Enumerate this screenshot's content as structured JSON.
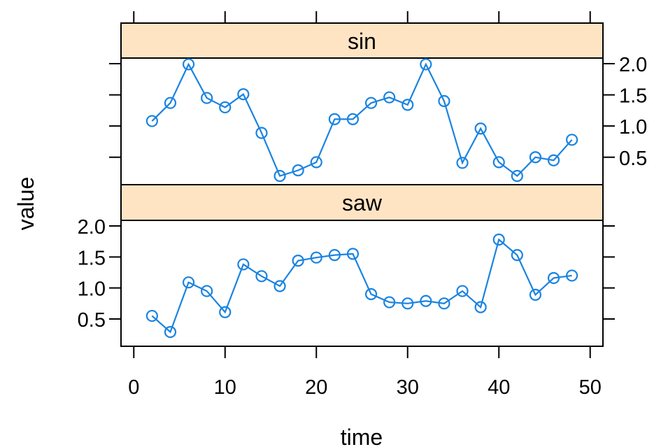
{
  "chart_data": {
    "type": "line",
    "xlabel": "time",
    "ylabel": "value",
    "xlim": [
      -1.4,
      51.4
    ],
    "ylim": [
      0.06,
      2.09
    ],
    "x_ticks": [
      0,
      10,
      20,
      30,
      40,
      50
    ],
    "x_tick_labels": [
      "0",
      "10",
      "20",
      "30",
      "40",
      "50"
    ],
    "y_ticks": [
      0.5,
      1.0,
      1.5,
      2.0
    ],
    "y_tick_labels": [
      "0.5",
      "1.0",
      "1.5",
      "2.0"
    ],
    "marker": "open-circle",
    "line_color": "#1a83e0",
    "strip_color": "#ffe4c4",
    "panels": [
      {
        "name": "sin",
        "x": [
          2,
          4,
          6,
          8,
          10,
          12,
          14,
          16,
          18,
          20,
          22,
          24,
          26,
          28,
          30,
          32,
          34,
          36,
          38,
          40,
          42,
          44,
          46,
          48
        ],
        "values": [
          1.08,
          1.37,
          1.99,
          1.45,
          1.3,
          1.51,
          0.89,
          0.2,
          0.29,
          0.42,
          1.11,
          1.11,
          1.37,
          1.46,
          1.34,
          1.99,
          1.4,
          0.41,
          0.96,
          0.42,
          0.2,
          0.5,
          0.45,
          0.78
        ]
      },
      {
        "name": "saw",
        "x": [
          2,
          4,
          6,
          8,
          10,
          12,
          14,
          16,
          18,
          20,
          22,
          24,
          26,
          28,
          30,
          32,
          34,
          36,
          38,
          40,
          42,
          44,
          46,
          48
        ],
        "values": [
          0.55,
          0.29,
          1.09,
          0.95,
          0.61,
          1.38,
          1.19,
          1.03,
          1.44,
          1.49,
          1.53,
          1.55,
          0.9,
          0.77,
          0.75,
          0.79,
          0.75,
          0.95,
          0.69,
          1.78,
          1.53,
          0.89,
          1.16,
          1.2
        ]
      }
    ]
  }
}
